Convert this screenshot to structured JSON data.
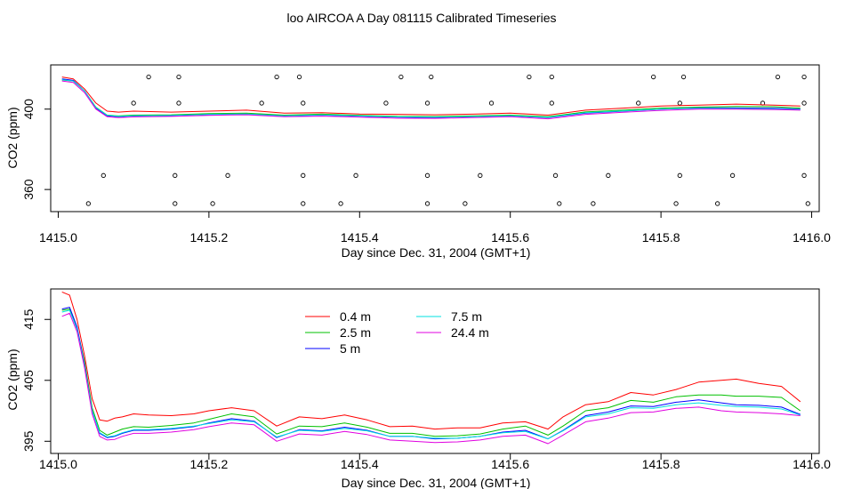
{
  "title": "loo AIRCOA A  Day 081115  Calibrated Timeseries",
  "series_colors": {
    "0.4 m": "#ff0000",
    "2.5 m": "#00c000",
    "5 m": "#0000ff",
    "7.5 m": "#00e0e0",
    "24.4 m": "#e000e0"
  },
  "chart_data": [
    {
      "type": "line",
      "title": "loo AIRCOA A  Day 081115  Calibrated Timeseries",
      "xlabel": "Day since Dec. 31, 2004 (GMT+1)",
      "ylabel": "CO2 (ppm)",
      "xlim": [
        1414.99,
        1416.01
      ],
      "ylim": [
        349,
        422
      ],
      "x_ticks": [
        "1415.0",
        "1415.2",
        "1415.4",
        "1415.6",
        "1415.8",
        "1416.0"
      ],
      "x_tick_values": [
        1415.0,
        1415.2,
        1415.4,
        1415.6,
        1415.8,
        1416.0
      ],
      "y_ticks": [
        "360",
        "400"
      ],
      "y_tick_values": [
        360,
        400
      ],
      "marker_rows": [
        {
          "y": 416,
          "x": [
            1415.12,
            1415.16,
            1415.29,
            1415.32,
            1415.455,
            1415.495,
            1415.625,
            1415.655,
            1415.79,
            1415.83,
            1415.955,
            1415.99
          ]
        },
        {
          "y": 403,
          "x": [
            1415.1,
            1415.16,
            1415.27,
            1415.325,
            1415.435,
            1415.49,
            1415.575,
            1415.655,
            1415.77,
            1415.825,
            1415.935,
            1415.99
          ]
        },
        {
          "y": 367,
          "x": [
            1415.06,
            1415.155,
            1415.225,
            1415.325,
            1415.395,
            1415.49,
            1415.56,
            1415.66,
            1415.73,
            1415.825,
            1415.895,
            1415.99
          ]
        },
        {
          "y": 353,
          "x": [
            1415.04,
            1415.155,
            1415.205,
            1415.325,
            1415.375,
            1415.49,
            1415.54,
            1415.665,
            1415.71,
            1415.82,
            1415.875,
            1415.995
          ]
        }
      ],
      "series": [
        {
          "name": "0.4 m",
          "color": "#ff0000",
          "x": [
            1415.005,
            1415.02,
            1415.035,
            1415.05,
            1415.065,
            1415.08,
            1415.1,
            1415.15,
            1415.2,
            1415.25,
            1415.3,
            1415.35,
            1415.4,
            1415.45,
            1415.5,
            1415.55,
            1415.6,
            1415.65,
            1415.7,
            1415.75,
            1415.8,
            1415.85,
            1415.9,
            1415.95,
            1415.985
          ],
          "values": [
            416,
            415,
            410,
            403,
            399,
            398.5,
            399,
            398.5,
            399,
            399.5,
            398,
            398.2,
            397.6,
            397.4,
            397.2,
            397.5,
            398,
            397,
            399.5,
            400.5,
            401.5,
            402,
            402.5,
            402,
            401.5
          ]
        },
        {
          "name": "2.5 m",
          "color": "#00c000",
          "x": [
            1415.005,
            1415.02,
            1415.035,
            1415.05,
            1415.065,
            1415.08,
            1415.1,
            1415.15,
            1415.2,
            1415.25,
            1415.3,
            1415.35,
            1415.4,
            1415.45,
            1415.5,
            1415.55,
            1415.6,
            1415.65,
            1415.7,
            1415.75,
            1415.8,
            1415.85,
            1415.9,
            1415.95,
            1415.985
          ],
          "values": [
            414.5,
            414,
            409,
            401,
            397,
            396.6,
            397,
            397.2,
            397.8,
            398,
            397,
            397.5,
            396.9,
            396.4,
            396.3,
            396.6,
            397,
            396.2,
            398.6,
            399.5,
            400.5,
            401,
            401.3,
            401.2,
            400.5
          ]
        },
        {
          "name": "5 m",
          "color": "#0000ff",
          "x": [
            1415.005,
            1415.02,
            1415.035,
            1415.05,
            1415.065,
            1415.08,
            1415.1,
            1415.15,
            1415.2,
            1415.25,
            1415.3,
            1415.35,
            1415.4,
            1415.45,
            1415.5,
            1415.55,
            1415.6,
            1415.65,
            1415.7,
            1415.75,
            1415.8,
            1415.85,
            1415.9,
            1415.95,
            1415.985
          ],
          "values": [
            415,
            414.3,
            409,
            400.5,
            396.6,
            396.2,
            396.6,
            396.8,
            397.3,
            397.5,
            396.6,
            397,
            396.5,
            396,
            395.8,
            396.2,
            396.6,
            395.8,
            398,
            399,
            400,
            400.6,
            400.6,
            400.4,
            400
          ]
        },
        {
          "name": "7.5 m",
          "color": "#00e0e0",
          "x": [
            1415.005,
            1415.02,
            1415.035,
            1415.05,
            1415.065,
            1415.08,
            1415.1,
            1415.15,
            1415.2,
            1415.25,
            1415.3,
            1415.35,
            1415.4,
            1415.45,
            1415.5,
            1415.55,
            1415.6,
            1415.65,
            1415.7,
            1415.75,
            1415.8,
            1415.85,
            1415.9,
            1415.95,
            1415.985
          ],
          "values": [
            414.6,
            414,
            409,
            400.8,
            396.9,
            396.4,
            396.7,
            396.9,
            397.4,
            397.6,
            396.7,
            397.1,
            396.6,
            396.1,
            396,
            396.3,
            396.7,
            395.9,
            398.2,
            399.1,
            400,
            400.4,
            400.3,
            400.1,
            399.8
          ]
        },
        {
          "name": "24.4 m",
          "color": "#e000e0",
          "x": [
            1415.005,
            1415.02,
            1415.035,
            1415.05,
            1415.065,
            1415.08,
            1415.1,
            1415.15,
            1415.2,
            1415.25,
            1415.3,
            1415.35,
            1415.4,
            1415.45,
            1415.5,
            1415.55,
            1415.6,
            1415.65,
            1415.7,
            1415.75,
            1415.8,
            1415.85,
            1415.9,
            1415.95,
            1415.985
          ],
          "values": [
            414,
            413.3,
            408.2,
            400,
            396.2,
            395.8,
            396.1,
            396.4,
            396.9,
            397.2,
            396.2,
            396.5,
            396,
            395.5,
            395.4,
            395.8,
            396.2,
            395.2,
            397.4,
            398.4,
            399.4,
            400,
            400,
            399.8,
            399.5
          ]
        }
      ]
    },
    {
      "type": "line",
      "xlabel": "Day since Dec. 31, 2004 (GMT+1)",
      "ylabel": "CO2 (ppm)",
      "xlim": [
        1414.99,
        1416.01
      ],
      "ylim": [
        393,
        420
      ],
      "x_ticks": [
        "1415.0",
        "1415.2",
        "1415.4",
        "1415.6",
        "1415.8",
        "1416.0"
      ],
      "x_tick_values": [
        1415.0,
        1415.2,
        1415.4,
        1415.6,
        1415.8,
        1416.0
      ],
      "y_ticks": [
        "395",
        "405",
        "415"
      ],
      "y_tick_values": [
        395,
        405,
        415
      ],
      "legend": {
        "position": "top-center",
        "columns": 2,
        "entries": [
          "0.4 m",
          "2.5 m",
          "5 m",
          "7.5 m",
          "24.4 m"
        ]
      },
      "series": [
        {
          "name": "0.4 m",
          "color": "#ff0000",
          "x": [
            1415.005,
            1415.015,
            1415.025,
            1415.035,
            1415.045,
            1415.055,
            1415.065,
            1415.075,
            1415.085,
            1415.1,
            1415.12,
            1415.15,
            1415.18,
            1415.2,
            1415.23,
            1415.26,
            1415.29,
            1415.32,
            1415.35,
            1415.38,
            1415.41,
            1415.44,
            1415.47,
            1415.5,
            1415.53,
            1415.56,
            1415.59,
            1415.62,
            1415.65,
            1415.67,
            1415.7,
            1415.73,
            1415.76,
            1415.79,
            1415.82,
            1415.85,
            1415.88,
            1415.9,
            1415.93,
            1415.96,
            1415.985
          ],
          "values": [
            419.5,
            419,
            415,
            409,
            402,
            398.5,
            398.3,
            398.8,
            399,
            399.5,
            399.3,
            399.2,
            399.5,
            400,
            400.5,
            400,
            397.5,
            399,
            398.7,
            399.3,
            398.5,
            397.4,
            397.5,
            397,
            397.2,
            397.2,
            398,
            398.2,
            397,
            399,
            401,
            401.5,
            403,
            402.6,
            403.5,
            404.7,
            405,
            405.2,
            404.5,
            404,
            401.5
          ]
        },
        {
          "name": "2.5 m",
          "color": "#00c000",
          "x": [
            1415.005,
            1415.015,
            1415.025,
            1415.035,
            1415.045,
            1415.055,
            1415.065,
            1415.075,
            1415.085,
            1415.1,
            1415.12,
            1415.15,
            1415.18,
            1415.2,
            1415.23,
            1415.26,
            1415.29,
            1415.32,
            1415.35,
            1415.38,
            1415.41,
            1415.44,
            1415.47,
            1415.5,
            1415.53,
            1415.56,
            1415.59,
            1415.62,
            1415.65,
            1415.67,
            1415.7,
            1415.73,
            1415.76,
            1415.79,
            1415.82,
            1415.85,
            1415.88,
            1415.9,
            1415.93,
            1415.96,
            1415.985
          ],
          "values": [
            416.5,
            416.7,
            413.5,
            408,
            400.5,
            396.8,
            396,
            396.5,
            397,
            397.4,
            397.3,
            397.6,
            398,
            398.6,
            399.5,
            399,
            396.2,
            397.5,
            397.4,
            398,
            397.3,
            396.3,
            396.3,
            395.8,
            395.9,
            396.2,
            397,
            397.5,
            396,
            397.5,
            400,
            400.5,
            401.7,
            401.4,
            402.3,
            402.6,
            402.6,
            402.4,
            402.4,
            402.2,
            400
          ]
        },
        {
          "name": "5 m",
          "color": "#0000ff",
          "x": [
            1415.005,
            1415.015,
            1415.025,
            1415.035,
            1415.045,
            1415.055,
            1415.065,
            1415.075,
            1415.085,
            1415.1,
            1415.12,
            1415.15,
            1415.18,
            1415.2,
            1415.23,
            1415.26,
            1415.29,
            1415.32,
            1415.35,
            1415.38,
            1415.41,
            1415.44,
            1415.47,
            1415.5,
            1415.53,
            1415.56,
            1415.59,
            1415.62,
            1415.65,
            1415.67,
            1415.7,
            1415.73,
            1415.76,
            1415.79,
            1415.82,
            1415.85,
            1415.88,
            1415.9,
            1415.93,
            1415.96,
            1415.985
          ],
          "values": [
            416.7,
            417,
            413.8,
            407.5,
            400,
            396.3,
            395.6,
            395.8,
            396.3,
            396.8,
            396.8,
            397,
            397.4,
            398,
            398.7,
            398.3,
            395.6,
            396.9,
            396.7,
            397.3,
            396.8,
            395.8,
            395.8,
            395.4,
            395.5,
            395.8,
            396.5,
            396.8,
            395.4,
            396.8,
            399.2,
            399.8,
            400.8,
            400.7,
            401.4,
            401.8,
            401.3,
            401,
            400.9,
            400.6,
            399.4
          ]
        },
        {
          "name": "7.5 m",
          "color": "#00e0e0",
          "x": [
            1415.005,
            1415.015,
            1415.025,
            1415.035,
            1415.045,
            1415.055,
            1415.065,
            1415.075,
            1415.085,
            1415.1,
            1415.12,
            1415.15,
            1415.18,
            1415.2,
            1415.23,
            1415.26,
            1415.29,
            1415.32,
            1415.35,
            1415.38,
            1415.41,
            1415.44,
            1415.47,
            1415.5,
            1415.53,
            1415.56,
            1415.59,
            1415.62,
            1415.65,
            1415.67,
            1415.7,
            1415.73,
            1415.76,
            1415.79,
            1415.82,
            1415.85,
            1415.88,
            1415.9,
            1415.93,
            1415.96,
            1415.985
          ],
          "values": [
            416.2,
            416.5,
            413.4,
            407.3,
            400,
            396.4,
            395.7,
            395.9,
            396.4,
            396.9,
            396.9,
            397.1,
            397.5,
            397.9,
            398.5,
            398.2,
            395.7,
            396.8,
            396.6,
            397.1,
            396.7,
            395.8,
            395.8,
            395.5,
            395.5,
            395.8,
            396.4,
            396.6,
            395.4,
            396.7,
            399,
            399.5,
            400.5,
            400.4,
            401,
            401.3,
            400.9,
            400.7,
            400.6,
            400.3,
            399.3
          ]
        },
        {
          "name": "24.4 m",
          "color": "#e000e0",
          "x": [
            1415.005,
            1415.015,
            1415.025,
            1415.035,
            1415.045,
            1415.055,
            1415.065,
            1415.075,
            1415.085,
            1415.1,
            1415.12,
            1415.15,
            1415.18,
            1415.2,
            1415.23,
            1415.26,
            1415.29,
            1415.32,
            1415.35,
            1415.38,
            1415.41,
            1415.44,
            1415.47,
            1415.5,
            1415.53,
            1415.56,
            1415.59,
            1415.62,
            1415.65,
            1415.67,
            1415.7,
            1415.73,
            1415.76,
            1415.79,
            1415.82,
            1415.85,
            1415.88,
            1415.9,
            1415.93,
            1415.96,
            1415.985
          ],
          "values": [
            415.5,
            416,
            413,
            407,
            399.5,
            395.8,
            395.2,
            395.3,
            395.8,
            396.3,
            396.3,
            396.5,
            396.9,
            397.4,
            398,
            397.7,
            395,
            396.2,
            396,
            396.6,
            396.1,
            395.2,
            395,
            394.8,
            394.9,
            395.2,
            395.8,
            396,
            394.6,
            396,
            398.2,
            398.8,
            399.7,
            399.8,
            400.4,
            400.6,
            400,
            399.8,
            399.7,
            399.5,
            399.2
          ]
        }
      ]
    }
  ]
}
